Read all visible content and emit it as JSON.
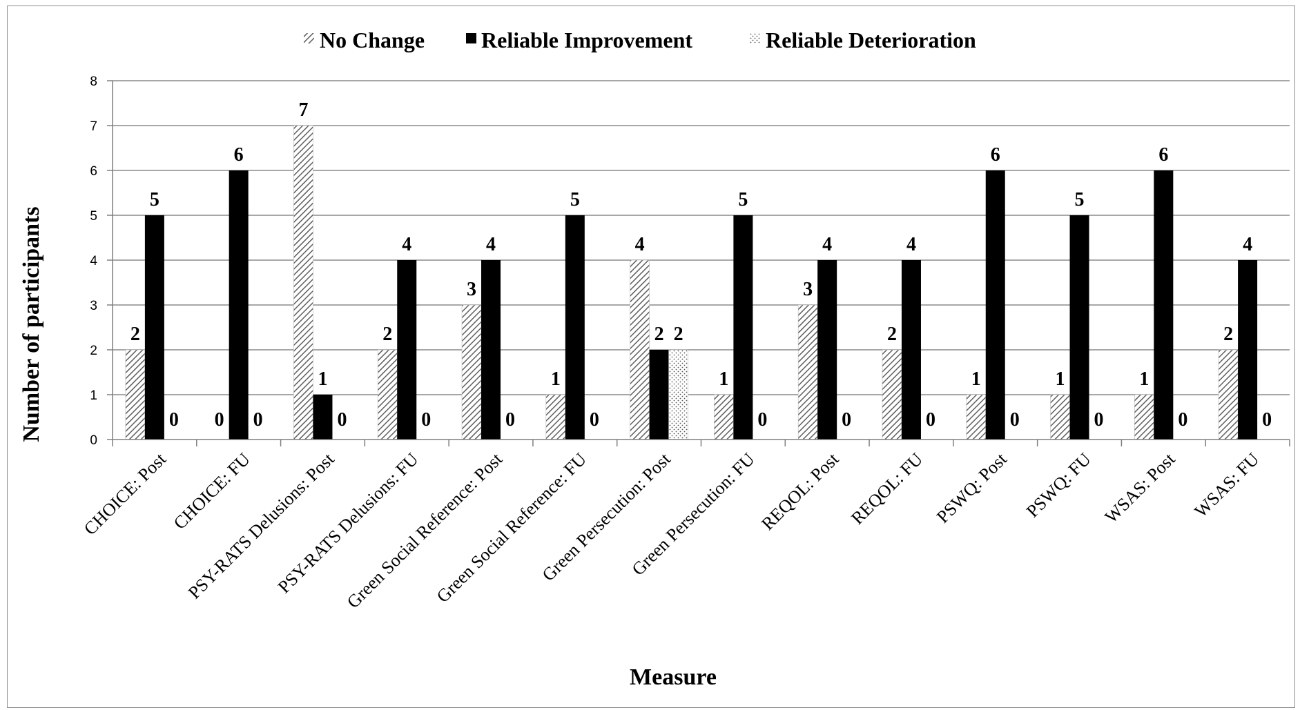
{
  "chart_data": {
    "type": "bar",
    "xlabel": "Measure",
    "ylabel": "Number of participants",
    "ylim": [
      0,
      8
    ],
    "yticks": [
      "0",
      "1",
      "2",
      "3",
      "4",
      "5",
      "6",
      "7",
      "8"
    ],
    "grid": true,
    "legend_position": "top-center",
    "categories": [
      "CHOICE: Post",
      "CHOICE: FU",
      "PSY-RATS Delusions: Post",
      "PSY-RATS Delusions: FU",
      "Green Social Reference: Post",
      "Green Social Reference: FU",
      "Green Persecution: Post",
      "Green Persecution: FU",
      "REQOL: Post",
      "REQOL: FU",
      "PSWQ: Post",
      "PSWQ: FU",
      "WSAS: Post",
      "WSAS: FU"
    ],
    "series": [
      {
        "name": "No Change",
        "pattern": "diagonal-hatch",
        "values": [
          2,
          0,
          7,
          2,
          3,
          1,
          4,
          1,
          3,
          2,
          1,
          1,
          1,
          2
        ]
      },
      {
        "name": "Reliable Improvement",
        "pattern": "solid-black",
        "values": [
          5,
          6,
          1,
          4,
          4,
          5,
          2,
          5,
          4,
          4,
          6,
          5,
          6,
          4
        ]
      },
      {
        "name": "Reliable Deterioration",
        "pattern": "dotted",
        "values": [
          0,
          0,
          0,
          0,
          0,
          0,
          2,
          0,
          0,
          0,
          0,
          0,
          0,
          0
        ]
      }
    ],
    "colors": {
      "axis": "#7f7f7f",
      "grid": "#8a8a8a",
      "bar_fill": "#000000",
      "hatch": "#6e6e6e"
    }
  }
}
